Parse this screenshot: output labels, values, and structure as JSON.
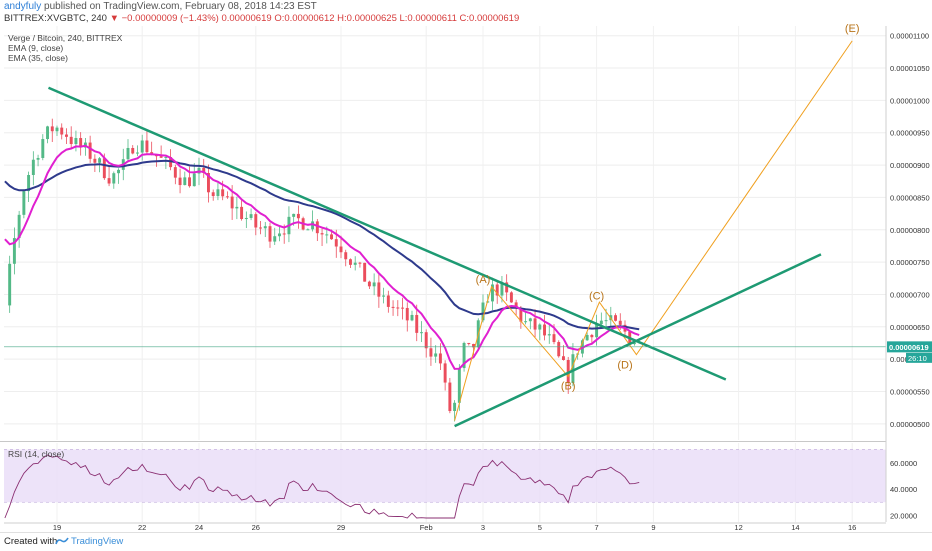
{
  "header": {
    "author": "andyfuly",
    "published": "published on TradingView.com, February 08, 2018 14:23 EST",
    "symbol_line": "BITTREX:XVGBTC, 240",
    "change": "▼ −0.00000009 (−1.43%)",
    "last": "0.00000619",
    "ohlc": "O:0.00000612 H:0.00000625 L:0.00000611 C:0.00000619"
  },
  "legend": {
    "main": "Verge / Bitcoin, 240, BITTREX",
    "ema9": "EMA (9, close)",
    "ema35": "EMA (35, close)"
  },
  "rsi": {
    "title": "RSI (14, close)"
  },
  "footer": {
    "created_with": "Created with",
    "brand": "TradingView"
  },
  "chart_data": [
    {
      "type": "candlestick",
      "title": "Verge / Bitcoin, 240, BITTREX",
      "x_ticks": [
        "19",
        "22",
        "24",
        "26",
        "29",
        "Feb",
        "3",
        "5",
        "7",
        "9",
        "12",
        "14",
        "16"
      ],
      "y_ticks": [
        "0.00001100",
        "0.00001050",
        "0.00001000",
        "0.00000950",
        "0.00000900",
        "0.00000850",
        "0.00000800",
        "0.00000750",
        "0.00000700",
        "0.00000650",
        "0.00000600",
        "0.00000550",
        "0.00000500"
      ],
      "ylim": [
        4.75e-06,
        1.115e-05
      ],
      "price_label": "0.00000619",
      "countdown_label": "26:10",
      "colors": {
        "up": "#53b987",
        "down": "#eb4d5c",
        "ema9": "#e020d0",
        "ema35": "#2e3a8c",
        "trendline": "#1e9a73",
        "wave": "#f0a020",
        "wave_label": "#b8741a"
      },
      "wave_labels": [
        {
          "label": "(A)",
          "date": "Feb 3",
          "price": 7.24e-06
        },
        {
          "label": "(B)",
          "date": "Feb 6",
          "price": 5.59e-06
        },
        {
          "label": "(C)",
          "date": "Feb 7",
          "price": 6.98e-06
        },
        {
          "label": "(D)",
          "date": "Feb 8",
          "price": 5.92e-06
        },
        {
          "label": "(E)",
          "date": "Feb 16",
          "price": 1.112e-05
        }
      ]
    },
    {
      "type": "line",
      "title": "RSI (14, close)",
      "y_ticks": [
        "60.0000",
        "40.0000",
        "20.0000"
      ],
      "ylim": [
        15,
        75
      ],
      "band": [
        30,
        70
      ]
    }
  ]
}
